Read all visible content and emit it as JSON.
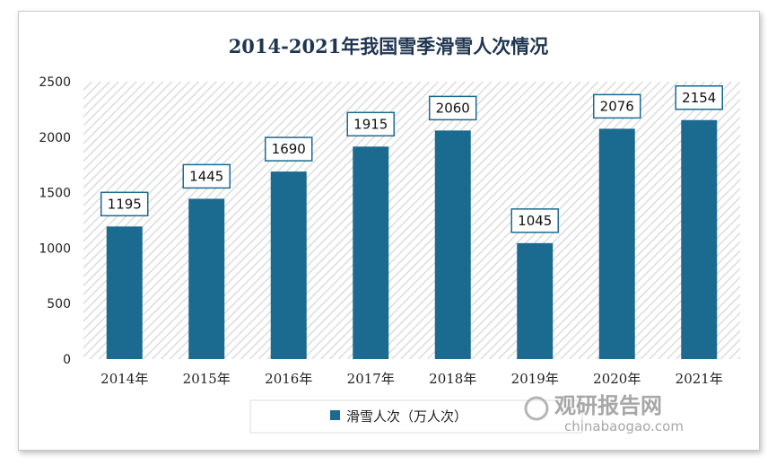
{
  "chart_data": {
    "type": "bar",
    "title": "2014-2021年我国雪季滑雪人次情况",
    "categories": [
      "2014年",
      "2015年",
      "2016年",
      "2017年",
      "2018年",
      "2019年",
      "2020年",
      "2021年"
    ],
    "series": [
      {
        "name": "滑雪人次（万人次）",
        "values": [
          1195,
          1445,
          1690,
          1915,
          2060,
          1045,
          2076,
          2154
        ],
        "color": "#1b6a8f"
      }
    ],
    "yticks": [
      0,
      500,
      1000,
      1500,
      2000,
      2500
    ],
    "ylim": [
      0,
      2500
    ],
    "grid": false,
    "legend": "bottom",
    "data_labels": true,
    "plot_background": "hatched"
  },
  "watermark": {
    "logo_text": "观研报告网",
    "url_text": "chinabaogao.com"
  }
}
